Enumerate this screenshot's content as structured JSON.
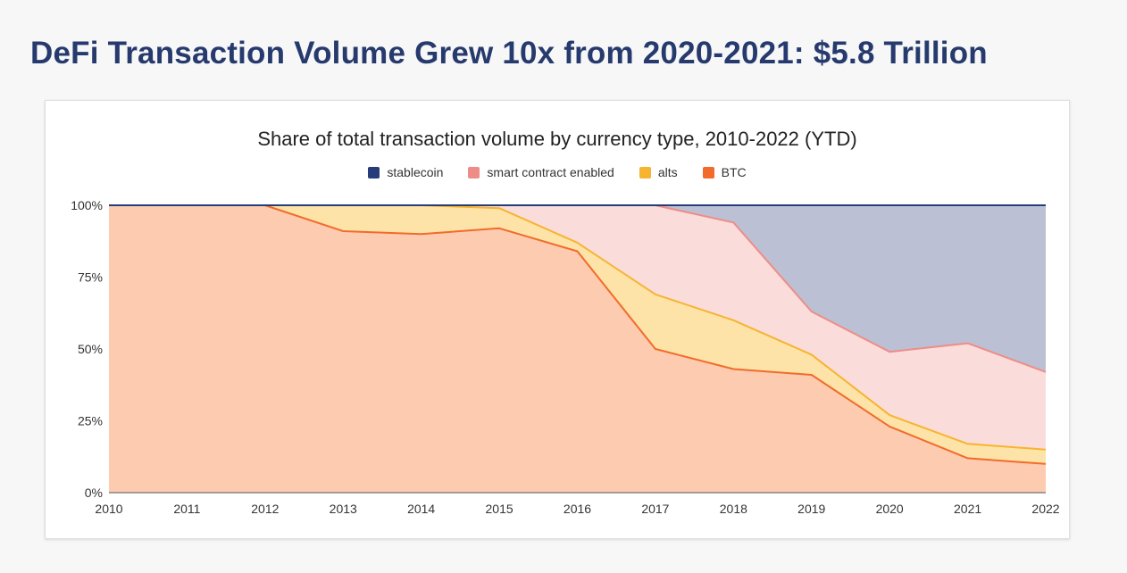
{
  "headline": "DeFi Transaction Volume Grew 10x from 2020-2021: $5.8 Trillion",
  "chart_data": {
    "type": "area",
    "stacked": true,
    "title": "Share of total transaction volume by currency type, 2010-2022 (YTD)",
    "x": [
      "2010",
      "2011",
      "2012",
      "2013",
      "2014",
      "2015",
      "2016",
      "2017",
      "2018",
      "2019",
      "2020",
      "2021",
      "2022"
    ],
    "ylim": [
      0,
      100
    ],
    "y_ticks": [
      "0%",
      "25%",
      "50%",
      "75%",
      "100%"
    ],
    "y_tick_values": [
      0,
      25,
      50,
      75,
      100
    ],
    "grid": true,
    "legend_position": "top",
    "series": [
      {
        "name": "stablecoin",
        "color": "#263d7a",
        "fill": "#bcc0d5",
        "values": [
          0,
          0,
          0,
          0,
          0,
          0,
          0,
          0,
          6,
          37,
          51,
          48,
          58
        ]
      },
      {
        "name": "smart contract enabled",
        "color": "#ee8d87",
        "fill": "#fadcda",
        "values": [
          0,
          0,
          0,
          0,
          0,
          1,
          13,
          31,
          34,
          15,
          22,
          35,
          27
        ]
      },
      {
        "name": "alts",
        "color": "#f6b431",
        "fill": "#fde3a7",
        "values": [
          0,
          0,
          0,
          9,
          10,
          7,
          3,
          19,
          17,
          7,
          4,
          5,
          5
        ]
      },
      {
        "name": "BTC",
        "color": "#f26b2b",
        "fill": "#fccbb0",
        "values": [
          100,
          100,
          100,
          91,
          90,
          92,
          84,
          50,
          43,
          41,
          23,
          12,
          10
        ]
      }
    ]
  }
}
